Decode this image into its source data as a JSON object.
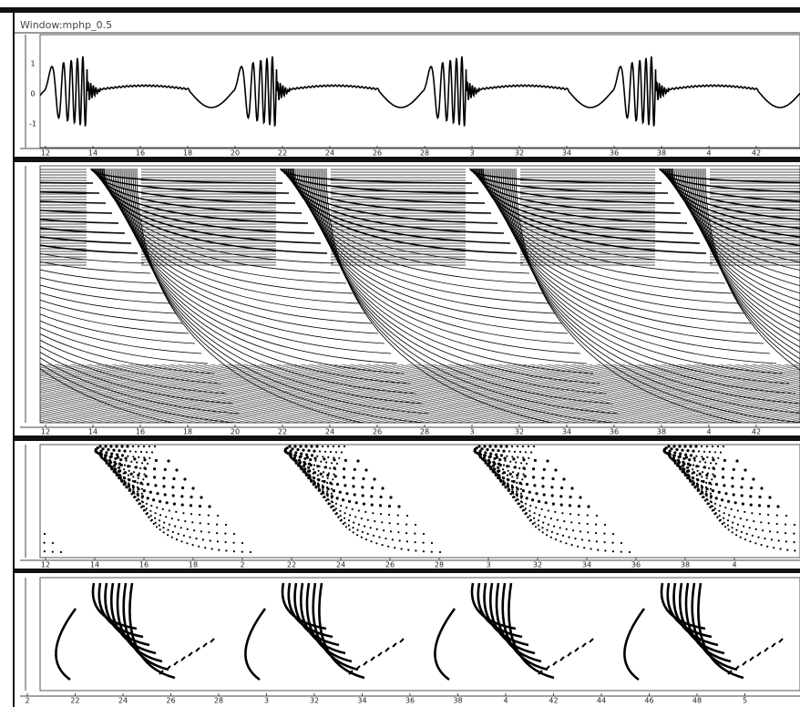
{
  "window": {
    "title": "Window:mphp_0.5"
  },
  "panels": [
    {
      "x_tick_labels": [
        "12",
        "14",
        "16",
        "18",
        "20",
        "22",
        "24",
        "26",
        "28",
        "3",
        "32",
        "34",
        "36",
        "38",
        "4",
        "42"
      ],
      "y_tick_labels": [
        "1",
        "0",
        "-1"
      ]
    },
    {
      "x_tick_labels": [
        "12",
        "14",
        "16",
        "18",
        "20",
        "22",
        "24",
        "26",
        "28",
        "3",
        "32",
        "34",
        "36",
        "38",
        "4",
        "42"
      ]
    },
    {
      "x_tick_labels": [
        "12",
        "14",
        "16",
        "18",
        "2",
        "22",
        "24",
        "26",
        "28",
        "3",
        "32",
        "34",
        "36",
        "38",
        "4"
      ]
    },
    {
      "x_tick_labels": [
        "2",
        "22",
        "24",
        "26",
        "28",
        "3",
        "32",
        "34",
        "36",
        "38",
        "4",
        "42",
        "44",
        "46",
        "48",
        "5"
      ]
    }
  ]
}
